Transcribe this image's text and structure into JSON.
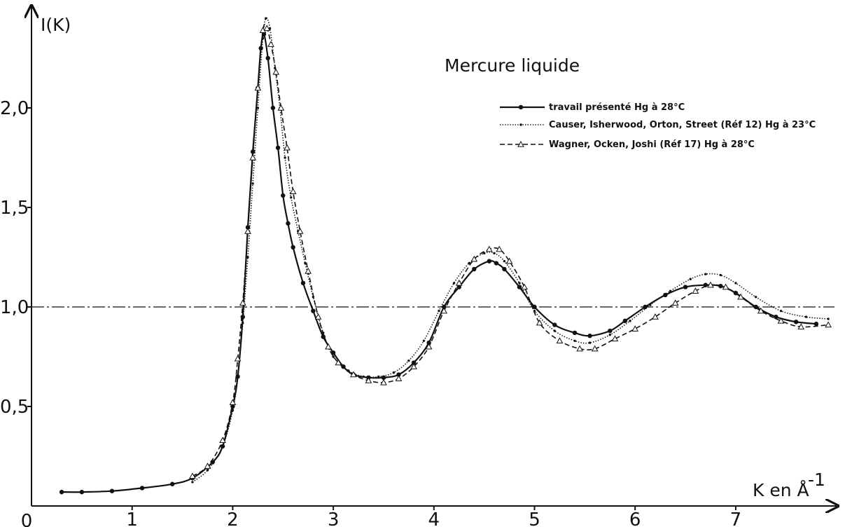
{
  "chart_data": {
    "type": "line",
    "title": "Mercure liquide",
    "ylabel": "I(K)",
    "xlabel": "K en Å",
    "xlabel_superscript": "-1",
    "origin_label": "0",
    "xlim": [
      0,
      7.92
    ],
    "ylim": [
      0,
      2.5
    ],
    "x_ticks": [
      1,
      2,
      3,
      4,
      5,
      6,
      7
    ],
    "x_tick_labels": [
      "1",
      "2",
      "3",
      "4",
      "5",
      "6",
      "7"
    ],
    "y_ticks": [
      0.5,
      1.0,
      1.5,
      2.0
    ],
    "y_tick_labels": [
      "0,5",
      "1,0",
      "1,5",
      "2,0"
    ],
    "reference_line": {
      "y": 1.0,
      "style": "dash-dot"
    },
    "grid": false,
    "legend_position": "top-right",
    "series": [
      {
        "name": "travail présenté Hg à 28°C",
        "style": "solid",
        "marker": "dot",
        "x": [
          0.3,
          0.5,
          0.8,
          1.1,
          1.4,
          1.6,
          1.8,
          1.9,
          2.0,
          2.05,
          2.1,
          2.15,
          2.2,
          2.25,
          2.28,
          2.31,
          2.35,
          2.4,
          2.45,
          2.5,
          2.55,
          2.6,
          2.7,
          2.8,
          2.9,
          3.0,
          3.1,
          3.2,
          3.35,
          3.5,
          3.65,
          3.8,
          3.95,
          4.1,
          4.25,
          4.4,
          4.55,
          4.62,
          4.7,
          4.85,
          5.0,
          5.2,
          5.4,
          5.55,
          5.75,
          5.9,
          6.1,
          6.3,
          6.5,
          6.7,
          6.85,
          7.0,
          7.2,
          7.4,
          7.6,
          7.8
        ],
        "y": [
          0.07,
          0.07,
          0.075,
          0.09,
          0.11,
          0.14,
          0.22,
          0.3,
          0.5,
          0.65,
          0.95,
          1.4,
          1.78,
          2.1,
          2.3,
          2.37,
          2.25,
          2.0,
          1.8,
          1.56,
          1.42,
          1.3,
          1.12,
          0.98,
          0.85,
          0.77,
          0.7,
          0.66,
          0.645,
          0.645,
          0.66,
          0.72,
          0.82,
          1.0,
          1.1,
          1.19,
          1.23,
          1.22,
          1.19,
          1.1,
          1.0,
          0.91,
          0.87,
          0.855,
          0.88,
          0.93,
          1.0,
          1.06,
          1.1,
          1.11,
          1.105,
          1.07,
          1.0,
          0.95,
          0.925,
          0.915
        ]
      },
      {
        "name": "Causer, Isherwood, Orton, Street (Réf 12)  Hg à 23°C",
        "style": "dotted",
        "marker": "cross",
        "x": [
          1.6,
          1.75,
          1.9,
          2.0,
          2.05,
          2.1,
          2.15,
          2.2,
          2.25,
          2.3,
          2.33,
          2.37,
          2.42,
          2.47,
          2.52,
          2.58,
          2.65,
          2.72,
          2.8,
          2.9,
          3.0,
          3.15,
          3.3,
          3.45,
          3.6,
          3.75,
          3.9,
          4.05,
          4.2,
          4.35,
          4.5,
          4.6,
          4.7,
          4.85,
          5.0,
          5.2,
          5.4,
          5.55,
          5.75,
          5.95,
          6.15,
          6.35,
          6.55,
          6.7,
          6.85,
          7.0,
          7.2,
          7.45,
          7.7,
          7.92
        ],
        "y": [
          0.12,
          0.18,
          0.3,
          0.48,
          0.65,
          0.92,
          1.25,
          1.62,
          2.0,
          2.35,
          2.45,
          2.4,
          2.2,
          2.0,
          1.75,
          1.55,
          1.38,
          1.22,
          1.05,
          0.87,
          0.75,
          0.68,
          0.65,
          0.65,
          0.67,
          0.73,
          0.83,
          0.98,
          1.12,
          1.22,
          1.27,
          1.27,
          1.23,
          1.12,
          0.98,
          0.88,
          0.83,
          0.82,
          0.86,
          0.93,
          1.01,
          1.08,
          1.14,
          1.165,
          1.16,
          1.12,
          1.05,
          0.98,
          0.95,
          0.94
        ]
      },
      {
        "name": "Wagner, Ocken, Joshi (Réf 17)  Hg à 28°C",
        "style": "dashed",
        "marker": "triangle",
        "x": [
          1.6,
          1.75,
          1.9,
          2.0,
          2.05,
          2.1,
          2.15,
          2.2,
          2.25,
          2.3,
          2.34,
          2.38,
          2.43,
          2.48,
          2.54,
          2.6,
          2.67,
          2.75,
          2.85,
          2.95,
          3.05,
          3.2,
          3.35,
          3.5,
          3.65,
          3.8,
          3.95,
          4.1,
          4.25,
          4.4,
          4.55,
          4.65,
          4.75,
          4.9,
          5.05,
          5.25,
          5.45,
          5.6,
          5.8,
          6.0,
          6.2,
          6.4,
          6.6,
          6.75,
          6.9,
          7.05,
          7.25,
          7.45,
          7.65,
          7.92
        ],
        "y": [
          0.15,
          0.2,
          0.33,
          0.52,
          0.74,
          1.02,
          1.38,
          1.75,
          2.1,
          2.39,
          2.4,
          2.32,
          2.18,
          2.0,
          1.8,
          1.58,
          1.38,
          1.18,
          0.95,
          0.8,
          0.72,
          0.66,
          0.63,
          0.62,
          0.64,
          0.7,
          0.8,
          0.98,
          1.12,
          1.24,
          1.29,
          1.29,
          1.23,
          1.1,
          0.92,
          0.83,
          0.79,
          0.79,
          0.84,
          0.89,
          0.95,
          1.02,
          1.08,
          1.11,
          1.1,
          1.05,
          0.98,
          0.93,
          0.9,
          0.91
        ]
      }
    ]
  }
}
